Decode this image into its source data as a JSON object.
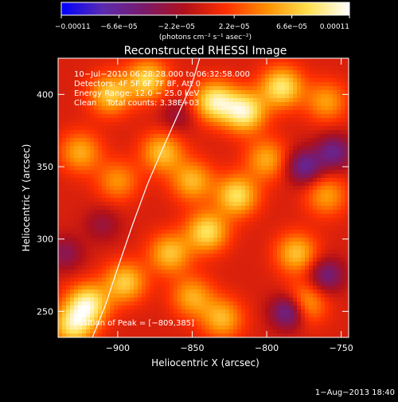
{
  "chart_data": {
    "type": "heatmap",
    "title": "Reconstructed RHESSI Image",
    "xlabel": "Heliocentric X (arcsec)",
    "ylabel": "Heliocentric Y (arcsec)",
    "xlim": [
      -940,
      -745
    ],
    "ylim": [
      232,
      425
    ],
    "x_ticks": [
      -900,
      -850,
      -800,
      -750
    ],
    "y_ticks": [
      250,
      300,
      350,
      400
    ],
    "x_tick_labels": [
      "−900",
      "−850",
      "−800",
      "−750"
    ],
    "y_tick_labels": [
      "250",
      "300",
      "350",
      "400"
    ],
    "colorbar": {
      "min": -0.00011,
      "max": 0.00011,
      "tick_values": [
        -0.00011,
        -6.6e-05,
        -2.2e-05,
        2.2e-05,
        6.6e-05,
        0.00011
      ],
      "tick_labels": [
        "−0.00011",
        "−6.6e−05",
        "−2.2e−05",
        "2.2e−05",
        "6.6e−05",
        "0.00011"
      ],
      "unit_label": "(photons cm⁻² s⁻¹ asec⁻²)",
      "colors": [
        "#0000ff",
        "#5a2bb0",
        "#7a1a6a",
        "#b0101a",
        "#ff3000",
        "#ff9000",
        "#ffe050",
        "#ffffff"
      ]
    },
    "annotations": {
      "time_range": "10−Jul−2010 06:28:28.000 to 06:32:58.000",
      "detectors": "Detectors: 4F 5F 6F 7F 8F, Att 0",
      "energy_range": "Energy Range: 12.0 − 25.0 keV",
      "method_counts": "Clean    Total counts: 3.38E+03",
      "peak": "Position of Peak = [−809,385]"
    },
    "limb": {
      "x": [
        -917,
        -908,
        -900,
        -890,
        -880,
        -870,
        -860,
        -850,
        -845
      ],
      "y": [
        232,
        255,
        280,
        310,
        338,
        362,
        385,
        408,
        425
      ]
    },
    "sources": [
      {
        "x": -835,
        "y": 395,
        "level": 0.95
      },
      {
        "x": -815,
        "y": 388,
        "level": 1.0
      },
      {
        "x": -790,
        "y": 405,
        "level": 0.9
      },
      {
        "x": -880,
        "y": 410,
        "level": 0.8
      },
      {
        "x": -905,
        "y": 400,
        "level": 0.75
      },
      {
        "x": -870,
        "y": 360,
        "level": 0.7
      },
      {
        "x": -850,
        "y": 340,
        "level": 0.65
      },
      {
        "x": -820,
        "y": 330,
        "level": 0.85
      },
      {
        "x": -800,
        "y": 355,
        "level": 0.6
      },
      {
        "x": -840,
        "y": 305,
        "level": 0.85
      },
      {
        "x": -865,
        "y": 290,
        "level": 0.7
      },
      {
        "x": -895,
        "y": 270,
        "level": 0.75
      },
      {
        "x": -920,
        "y": 255,
        "level": 0.95
      },
      {
        "x": -930,
        "y": 240,
        "level": 0.85
      },
      {
        "x": -780,
        "y": 290,
        "level": 0.7
      },
      {
        "x": -760,
        "y": 330,
        "level": 0.55
      },
      {
        "x": -850,
        "y": 260,
        "level": 0.6
      },
      {
        "x": -830,
        "y": 245,
        "level": 0.65
      },
      {
        "x": -775,
        "y": 255,
        "level": 0.7
      },
      {
        "x": -900,
        "y": 340,
        "level": 0.5
      },
      {
        "x": -760,
        "y": 395,
        "level": 0.55
      },
      {
        "x": -925,
        "y": 360,
        "level": 0.6
      }
    ],
    "sinks": [
      {
        "x": -785,
        "y": 250,
        "level": -0.9
      },
      {
        "x": -760,
        "y": 275,
        "level": -0.6
      },
      {
        "x": -775,
        "y": 350,
        "level": -0.7
      },
      {
        "x": -755,
        "y": 360,
        "level": -0.65
      },
      {
        "x": -935,
        "y": 290,
        "level": -0.4
      },
      {
        "x": -910,
        "y": 310,
        "level": -0.3
      },
      {
        "x": -860,
        "y": 385,
        "level": -0.3
      }
    ]
  },
  "footer": {
    "timestamp": "1−Aug−2013 18:40"
  }
}
